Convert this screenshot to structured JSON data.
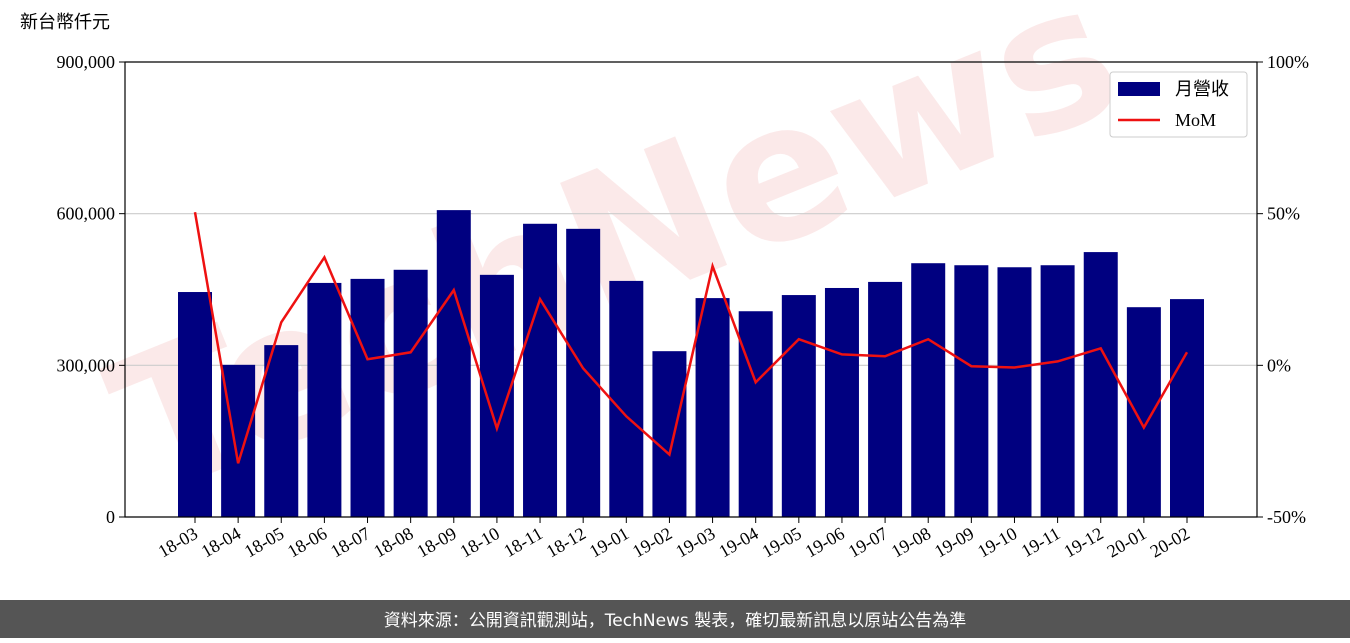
{
  "chart_data": {
    "type": "bar_line",
    "y_label": "新台幣仟元",
    "watermark": "TechNews",
    "footer": "資料來源：公開資訊觀測站，TechNews 製表，確切最新訊息以原站公告為準",
    "categories": [
      "18-03",
      "18-04",
      "18-05",
      "18-06",
      "18-07",
      "18-08",
      "18-09",
      "18-10",
      "18-11",
      "18-12",
      "19-01",
      "19-02",
      "19-03",
      "19-04",
      "19-05",
      "19-06",
      "19-07",
      "19-08",
      "19-09",
      "19-10",
      "19-11",
      "19-12",
      "20-01",
      "20-02"
    ],
    "series": [
      {
        "name": "月營收",
        "color": "#000080",
        "type": "bar",
        "values": [
          445000,
          301000,
          340000,
          463000,
          471000,
          489000,
          607000,
          479000,
          580000,
          570000,
          467000,
          328000,
          433000,
          407000,
          439000,
          453000,
          465000,
          502000,
          498000,
          494000,
          498000,
          524000,
          415000,
          431000
        ]
      },
      {
        "name": "MoM",
        "color": "#ee1111",
        "type": "line",
        "axis": "y2",
        "values": [
          50.5,
          -32.3,
          14.2,
          35.6,
          2.0,
          4.3,
          24.8,
          -20.8,
          21.8,
          -1.0,
          -16.8,
          -29.4,
          32.7,
          -5.6,
          8.6,
          3.6,
          3.0,
          8.6,
          -0.3,
          -0.7,
          1.3,
          5.6,
          -20.5,
          4.3
        ]
      }
    ],
    "ylim": [
      0,
      900000
    ],
    "yticks": [
      0,
      {
        "value": 300000,
        "label": "300,000"
      },
      {
        "value": 600000,
        "label": "600,000"
      },
      {
        "value": 900000,
        "label": "900,000"
      }
    ],
    "y2lim": [
      -50,
      100
    ],
    "y2ticks": [
      {
        "value": -50,
        "label": "-50%"
      },
      {
        "value": 0,
        "label": "0%"
      },
      {
        "value": 50,
        "label": "50%"
      },
      {
        "value": 100,
        "label": "100%"
      }
    ],
    "grid": true,
    "legend": "upper right"
  }
}
